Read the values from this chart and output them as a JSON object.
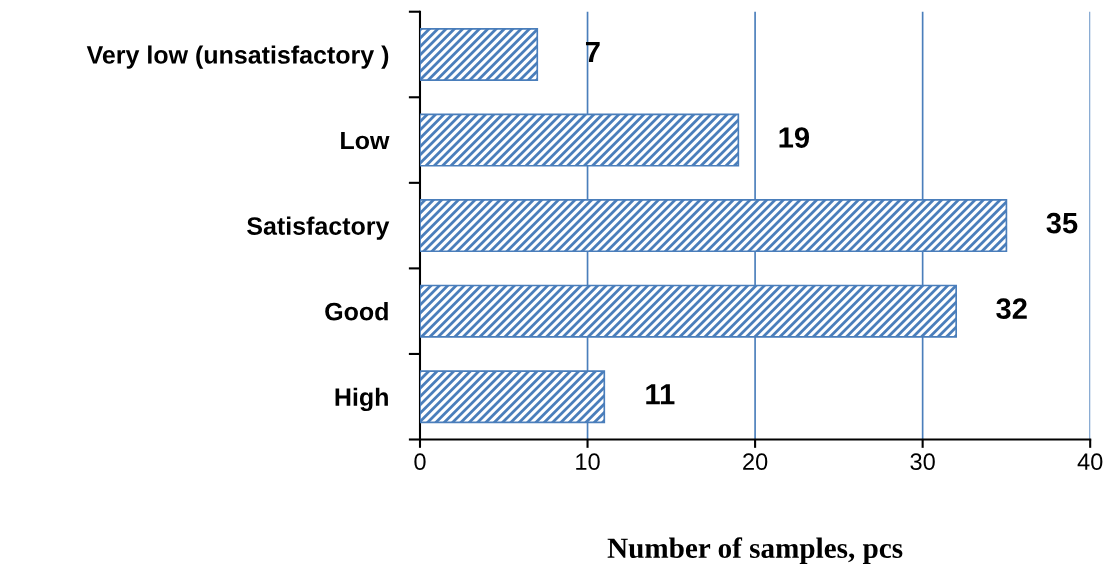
{
  "chart_data": {
    "type": "bar",
    "orientation": "horizontal",
    "xlabel": "Number of samples, pcs",
    "categories": [
      "Very low (unsatisfactory )",
      "Low",
      "Satisfactory",
      "Good",
      "High"
    ],
    "values": [
      7,
      19,
      35,
      32,
      11
    ],
    "color": "#4a7ebb",
    "xlim": [
      0,
      40
    ],
    "xticks": [
      0,
      10,
      20,
      30,
      40
    ],
    "grid": "x",
    "data_labels": true
  }
}
